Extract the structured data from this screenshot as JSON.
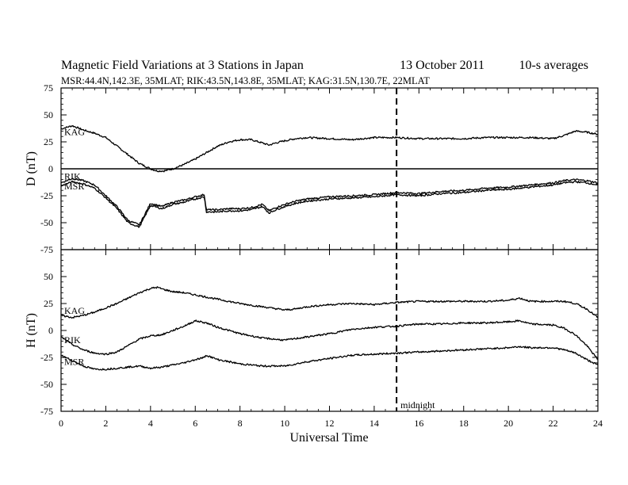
{
  "chart_data": {
    "type": "line",
    "title": "Magnetic Field Variations at 3 Stations in Japan",
    "date": "13 October 2011",
    "averaging": "10-s averages",
    "subtitle": "MSR:44.4N,142.3E, 35MLAT;  RIK:43.5N,143.8E, 35MLAT;  KAG:31.5N,130.7E, 22MLAT",
    "xlabel": "Universal Time",
    "xlim": [
      0,
      24
    ],
    "xticks": [
      0,
      2,
      4,
      6,
      8,
      10,
      12,
      14,
      16,
      18,
      20,
      22,
      24
    ],
    "marker": {
      "x": 15,
      "label": "midnight"
    },
    "panels": [
      {
        "ylabel": "D (nT)",
        "ylim": [
          -75,
          75
        ],
        "yticks": [
          75,
          50,
          25,
          0,
          -25,
          -50,
          -75
        ],
        "zero_line": true,
        "series": [
          {
            "name": "KAG",
            "x": [
              0,
              0.5,
              1,
              1.5,
              2,
              2.5,
              3,
              3.5,
              4,
              4.3,
              4.6,
              5,
              5.5,
              6,
              6.5,
              7,
              7.5,
              8,
              8.5,
              9,
              9.3,
              9.6,
              10,
              10.5,
              11,
              12,
              13,
              14,
              15,
              16,
              17,
              18,
              19,
              20,
              21,
              22,
              22.5,
              23,
              23.5,
              24
            ],
            "y": [
              37,
              40,
              36,
              33,
              29,
              21,
              13,
              5,
              0,
              -2,
              -2,
              0,
              4,
              9,
              15,
              21,
              25,
              27,
              27,
              24,
              22,
              24,
              26,
              28,
              29,
              28,
              27,
              29,
              29,
              28,
              28,
              28,
              29,
              29,
              29,
              28,
              31,
              35,
              34,
              32
            ]
          },
          {
            "name": "RIK",
            "x": [
              0,
              0.5,
              1,
              1.5,
              2,
              2.5,
              3,
              3.5,
              4,
              4.5,
              5,
              5.5,
              6,
              6.4,
              6.5,
              7,
              7.5,
              8,
              8.5,
              9,
              9.3,
              9.6,
              10,
              10.5,
              11,
              12,
              13,
              14,
              15,
              16,
              17,
              18,
              19,
              20,
              21,
              22,
              22.5,
              23,
              23.5,
              24
            ],
            "y": [
              -13,
              -9,
              -11,
              -15,
              -25,
              -35,
              -48,
              -52,
              -32,
              -35,
              -31,
              -29,
              -26,
              -24,
              -38,
              -38,
              -37,
              -37,
              -36,
              -33,
              -39,
              -36,
              -33,
              -30,
              -28,
              -26,
              -25,
              -24,
              -22,
              -23,
              -21,
              -20,
              -18,
              -17,
              -15,
              -13,
              -11,
              -10,
              -11,
              -13
            ]
          },
          {
            "name": "MSR",
            "x": [
              0,
              0.5,
              1,
              1.5,
              2,
              2.5,
              3,
              3.5,
              4,
              4.5,
              5,
              5.5,
              6,
              6.4,
              6.5,
              7,
              7.5,
              8,
              8.5,
              9,
              9.3,
              9.6,
              10,
              10.5,
              11,
              12,
              13,
              14,
              15,
              16,
              17,
              18,
              19,
              20,
              21,
              22,
              22.5,
              23,
              23.5,
              24
            ],
            "y": [
              -16,
              -12,
              -14,
              -18,
              -27,
              -37,
              -50,
              -54,
              -34,
              -37,
              -33,
              -31,
              -28,
              -26,
              -40,
              -40,
              -39,
              -39,
              -38,
              -35,
              -41,
              -38,
              -35,
              -32,
              -30,
              -28,
              -27,
              -26,
              -24,
              -25,
              -23,
              -22,
              -20,
              -19,
              -17,
              -15,
              -13,
              -12,
              -13,
              -15
            ]
          }
        ]
      },
      {
        "ylabel": "H (nT)",
        "ylim": [
          -75,
          75
        ],
        "yticks": [
          75,
          50,
          25,
          0,
          -25,
          -50,
          -75
        ],
        "zero_line": false,
        "series": [
          {
            "name": "KAG",
            "x": [
              0,
              0.5,
              1,
              1.5,
              2,
              2.5,
              3,
              3.5,
              4,
              4.3,
              4.6,
              5,
              5.5,
              6,
              7,
              8,
              9,
              10,
              10.5,
              11,
              12,
              13,
              14,
              15,
              16,
              17,
              18,
              19,
              20,
              20.5,
              21,
              22,
              22.5,
              23,
              23.5,
              24
            ],
            "y": [
              14,
              12,
              14,
              17,
              21,
              25,
              30,
              35,
              39,
              40,
              38,
              36,
              35,
              33,
              29,
              25,
              22,
              19,
              20,
              22,
              24,
              25,
              24,
              26,
              27,
              27,
              27,
              27,
              28,
              30,
              27,
              27,
              27,
              25,
              20,
              12
            ]
          },
          {
            "name": "RIK",
            "x": [
              0,
              0.5,
              1,
              1.5,
              2,
              2.5,
              3,
              3.5,
              4,
              4.5,
              5,
              5.5,
              6,
              6.5,
              7,
              8,
              9,
              10,
              11,
              12,
              13,
              14,
              15,
              16,
              17,
              18,
              19,
              20,
              20.5,
              21,
              22,
              22.5,
              23,
              23.5,
              24
            ],
            "y": [
              -6,
              -13,
              -18,
              -21,
              -22,
              -20,
              -14,
              -8,
              -5,
              -4,
              0,
              4,
              9,
              7,
              3,
              -3,
              -7,
              -9,
              -6,
              -3,
              1,
              3,
              4,
              6,
              6,
              7,
              7,
              8,
              9,
              6,
              5,
              2,
              -4,
              -14,
              -27
            ]
          },
          {
            "name": "MSR",
            "x": [
              0,
              0.5,
              1,
              1.5,
              2,
              2.5,
              3,
              3.5,
              4,
              4.5,
              5,
              5.5,
              6,
              6.4,
              6.5,
              7,
              8,
              9,
              10,
              11,
              12,
              13,
              14,
              15,
              16,
              17,
              18,
              19,
              20,
              20.5,
              21,
              22,
              22.5,
              23,
              23.5,
              24
            ],
            "y": [
              -23,
              -28,
              -33,
              -36,
              -36,
              -35,
              -34,
              -33,
              -35,
              -34,
              -32,
              -30,
              -27,
              -25,
              -23,
              -27,
              -31,
              -33,
              -33,
              -29,
              -26,
              -23,
              -22,
              -21,
              -20,
              -19,
              -18,
              -17,
              -16,
              -15,
              -16,
              -16,
              -18,
              -21,
              -27,
              -32
            ]
          }
        ]
      }
    ]
  }
}
